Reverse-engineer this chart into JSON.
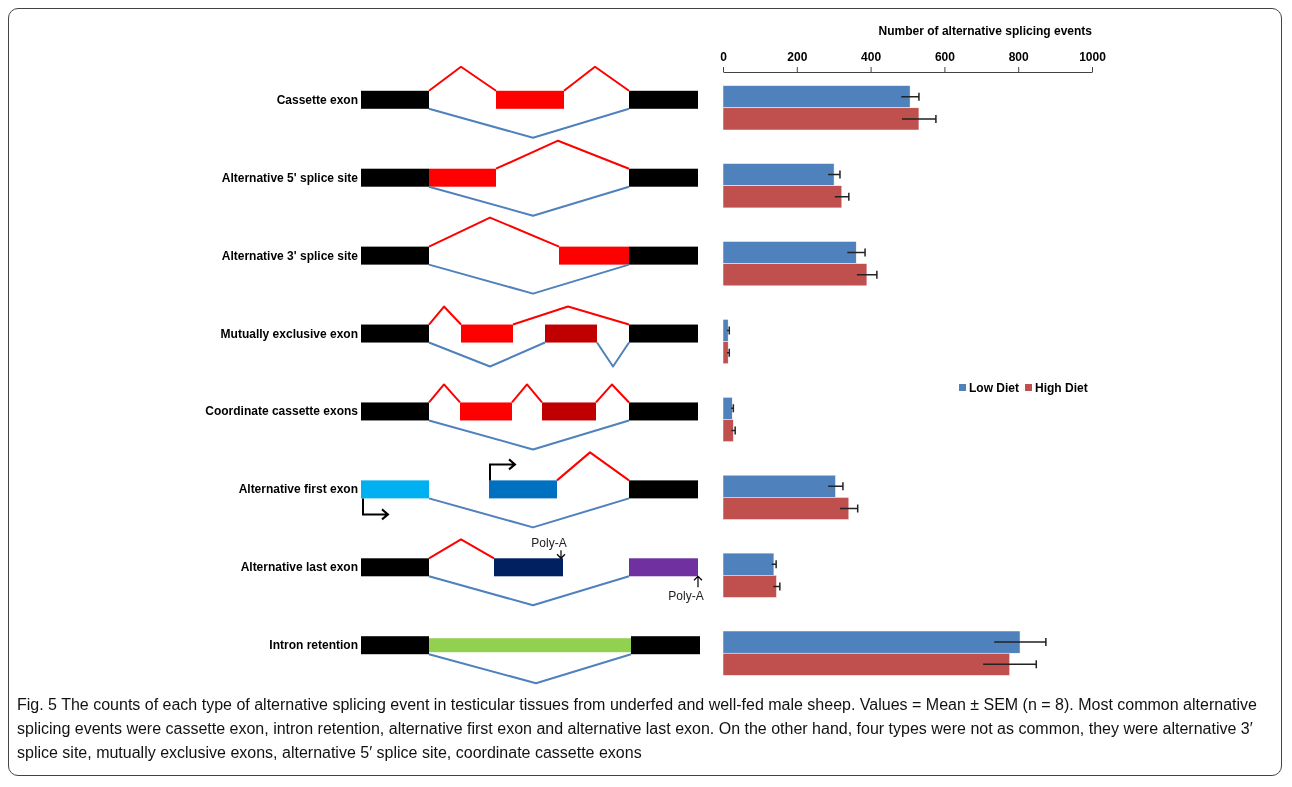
{
  "chart_data": {
    "type": "bar",
    "orientation": "horizontal",
    "x2label": "Number of alternative splicing events",
    "categories": [
      "Cassette exon",
      "Alternative 5' splice site",
      "Alternative 3' splice site",
      "Mutually exclusive exon",
      "Coordinate cassette exons",
      "Alternative first exon",
      "Alternative last exon",
      "Intron retention"
    ],
    "series": [
      {
        "name": "Low Diet",
        "color": "#4f81bd",
        "axis": "x2",
        "values": [
          507,
          301,
          361,
          14,
          25,
          305,
          138,
          805
        ],
        "errors": [
          24,
          16,
          24,
          3,
          3,
          20,
          6,
          70
        ]
      },
      {
        "name": "High Diet",
        "color": "#c0504d",
        "axis": "x2",
        "values": [
          531,
          322,
          390,
          14,
          28,
          341,
          145,
          777
        ],
        "errors": [
          46,
          19,
          27,
          3,
          5,
          24,
          9,
          72
        ]
      }
    ],
    "x2lim": [
      0,
      1000
    ],
    "x2ticks": [
      0,
      200,
      400,
      600,
      800,
      1000
    ],
    "grid": false,
    "legend": "right",
    "annotations": [
      "Poly-A",
      "Poly-A",
      "Fig. 5 The counts of each type of alternative splicing event in testicular tissues from underfed and well-fed male sheep. Values = Mean ± SEM (n = 8). Most common alternative splicing events were cassette exon, intron retention, alternative first exon and alternative last exon. On the other hand, four types were not as common, they were alternative 3′ splice site, mutually exclusive exons, alternative 5′ splice site, coordinate cassette exons"
    ]
  }
}
